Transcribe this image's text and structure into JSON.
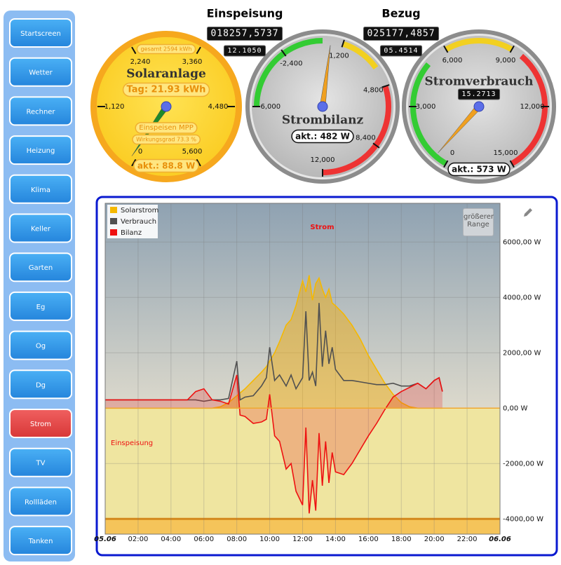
{
  "sidebar": {
    "buttons": [
      "Startscreen",
      "Wetter",
      "Rechner",
      "Heizung",
      "Klima",
      "Keller",
      "Garten",
      "Eg",
      "Og",
      "Dg",
      "Strom",
      "TV",
      "Rollläden",
      "Tanken"
    ],
    "active": 10
  },
  "headings": [
    {
      "label": "Einspeisung",
      "counter": "018257,5737",
      "subcounter": "12.1050"
    },
    {
      "label": "Bezug",
      "counter": "025177,4857",
      "subcounter": "05.4514"
    }
  ],
  "gauges": [
    {
      "title": "Solaranlage",
      "total": "gesamt 2594 kWh",
      "day": "Tag: 21.93 kWh",
      "mode": "Einspeisen MPP",
      "efficiency": "Wirkungsgrad 73.3 %",
      "value": 88.8,
      "value_label": "akt.: 88.8 W",
      "lim": [
        0,
        5600
      ],
      "ticks": [
        0,
        {
          "value": 1120,
          "label": "1,120"
        },
        {
          "value": 2240,
          "label": "2,240"
        },
        {
          "value": 3360,
          "label": "3,360"
        },
        {
          "value": 4480,
          "label": "4,480"
        },
        {
          "value": 5600,
          "label": "5,600"
        }
      ],
      "face": "#ffd93a",
      "rim": "#f6a81e",
      "needle": "#1f8a2a",
      "bands": []
    },
    {
      "title": "Strombilanz",
      "value": 482,
      "value_label": "akt.: 482 W",
      "lim": [
        -6000,
        12000
      ],
      "ticks": [
        {
          "value": -6000,
          "label": "-6,000"
        },
        {
          "value": -2400,
          "label": "-2,400"
        },
        {
          "value": 1200,
          "label": "1,200"
        },
        {
          "value": 4800,
          "label": "4,800"
        },
        {
          "value": 8400,
          "label": "8,400"
        },
        {
          "value": 12000,
          "label": "12,000"
        }
      ],
      "face": "#cfcfcf",
      "rim": "#8c8c8c",
      "needle": "#f0a020",
      "bands": [
        {
          "from": -6000,
          "to": 0,
          "color": "#33cc33"
        },
        {
          "from": 1200,
          "to": 3600,
          "color": "#f2d020"
        },
        {
          "from": 4800,
          "to": 12000,
          "color": "#ee3333"
        }
      ]
    },
    {
      "title": "Stromverbrauch",
      "counter": "15.2713",
      "value": 573,
      "value_label": "akt.: 573 W",
      "lim": [
        0,
        15000
      ],
      "ticks": [
        0,
        {
          "value": 3000,
          "label": "3,000"
        },
        {
          "value": 6000,
          "label": "6,000"
        },
        {
          "value": 9000,
          "label": "9,000"
        },
        {
          "value": 12000,
          "label": "12,000"
        },
        {
          "value": 15000,
          "label": "15,000"
        }
      ],
      "face": "#cfcfcf",
      "rim": "#8c8c8c",
      "needle": "#f0a020",
      "bands": [
        {
          "from": 0,
          "to": 5000,
          "color": "#33cc33"
        },
        {
          "from": 6000,
          "to": 9000,
          "color": "#f2d020"
        },
        {
          "from": 9500,
          "to": 15000,
          "color": "#ee3333"
        }
      ]
    }
  ],
  "chart": {
    "type": "area",
    "title": "Strom",
    "annotation": "Einspeisung",
    "button": "größerer Range",
    "x": [
      0,
      1,
      2,
      3,
      4,
      5,
      5.5,
      6,
      6.5,
      7,
      7.5,
      8,
      8.2,
      8.5,
      9,
      9.5,
      9.8,
      10,
      10.3,
      10.6,
      11,
      11.3,
      11.6,
      12,
      12.2,
      12.4,
      12.6,
      12.8,
      13,
      13.2,
      13.4,
      13.6,
      13.8,
      14,
      14.5,
      15,
      15.5,
      16,
      16.5,
      17,
      17.5,
      18,
      18.5,
      19,
      19.5,
      20,
      20.3,
      20.5
    ],
    "series": [
      {
        "name": "Solarstrom",
        "color": "#f5b800",
        "fill": "rgba(245,170,0,0.45)",
        "values": [
          0,
          0,
          0,
          0,
          0,
          0,
          0,
          0,
          0,
          50,
          200,
          450,
          550,
          700,
          1000,
          1300,
          1500,
          1700,
          2000,
          2400,
          3000,
          3200,
          3700,
          4600,
          4200,
          4800,
          3900,
          4500,
          4700,
          4300,
          4000,
          4300,
          3800,
          3700,
          3400,
          3000,
          2500,
          1900,
          1400,
          900,
          500,
          200,
          50,
          0,
          0,
          0,
          0,
          0
        ]
      },
      {
        "name": "Verbrauch",
        "color": "#505050",
        "fill": null,
        "values": [
          300,
          300,
          300,
          300,
          300,
          300,
          300,
          250,
          300,
          300,
          350,
          1700,
          300,
          400,
          450,
          800,
          1100,
          2200,
          1000,
          1200,
          800,
          1200,
          700,
          1100,
          3500,
          1000,
          1300,
          800,
          3800,
          1500,
          2800,
          1600,
          2200,
          1400,
          1000,
          1000,
          950,
          900,
          850,
          850,
          900,
          800,
          800,
          900,
          700,
          1000,
          1100,
          600
        ]
      },
      {
        "name": "Bilanz",
        "color": "#ee1111",
        "fill": "rgba(230,40,40,0.25)",
        "values": [
          300,
          300,
          300,
          300,
          300,
          300,
          600,
          700,
          300,
          250,
          150,
          1200,
          -250,
          -300,
          -550,
          -500,
          -400,
          500,
          -1000,
          -1200,
          -2200,
          -2000,
          -3000,
          -3500,
          -700,
          -3800,
          -2600,
          -3700,
          -900,
          -2800,
          -1200,
          -2700,
          -1600,
          -2300,
          -2400,
          -2000,
          -1500,
          -1000,
          -550,
          -50,
          400,
          600,
          750,
          900,
          700,
          1000,
          1100,
          600
        ]
      }
    ],
    "xlim": [
      0,
      24
    ],
    "xticks": [
      {
        "value": 0,
        "label": "05.06"
      },
      {
        "value": 2,
        "label": "02:00"
      },
      {
        "value": 4,
        "label": "04:00"
      },
      {
        "value": 6,
        "label": "06:00"
      },
      {
        "value": 8,
        "label": "08:00"
      },
      {
        "value": 10,
        "label": "10:00"
      },
      {
        "value": 12,
        "label": "12:00"
      },
      {
        "value": 14,
        "label": "14:00"
      },
      {
        "value": 16,
        "label": "16:00"
      },
      {
        "value": 18,
        "label": "18:00"
      },
      {
        "value": 20,
        "label": "20:00"
      },
      {
        "value": 22,
        "label": "22:00"
      },
      {
        "value": 24,
        "label": "06.06"
      }
    ],
    "ylim": [
      -4550,
      7400
    ],
    "yticks": [
      {
        "value": -4000,
        "label": "-4000,00 W"
      },
      {
        "value": -2000,
        "label": "-2000,00 W"
      },
      {
        "value": 0,
        "label": "0,00 W"
      },
      {
        "value": 2000,
        "label": "2000,00 W"
      },
      {
        "value": 4000,
        "label": "4000,00 W"
      },
      {
        "value": 6000,
        "label": "6000,00 W"
      }
    ],
    "grid": true,
    "legend": "top-left"
  }
}
